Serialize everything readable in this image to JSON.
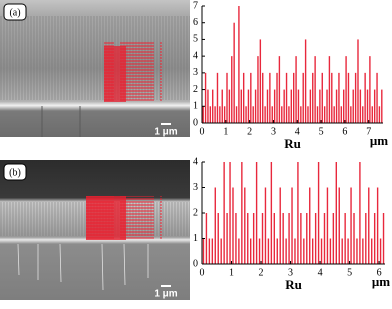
{
  "chart_data": [
    {
      "type": "spike",
      "panel_label": "(a)",
      "scale_bar_label": "1 μm",
      "x_label": "Ru",
      "x_unit": "μm",
      "color": "#e8283c",
      "xlim": [
        0,
        7.6
      ],
      "xticks": [
        0,
        1,
        2,
        3,
        4,
        5,
        6,
        7
      ],
      "ylim": [
        0,
        7
      ],
      "yticks": [
        0,
        1,
        2,
        3,
        4,
        5,
        6,
        7
      ],
      "x": [
        0.05,
        0.15,
        0.25,
        0.35,
        0.45,
        0.55,
        0.65,
        0.75,
        0.85,
        0.95,
        1.05,
        1.15,
        1.25,
        1.35,
        1.45,
        1.55,
        1.65,
        1.75,
        1.85,
        1.95,
        2.05,
        2.15,
        2.25,
        2.35,
        2.45,
        2.55,
        2.65,
        2.75,
        2.85,
        2.95,
        3.05,
        3.15,
        3.25,
        3.35,
        3.45,
        3.55,
        3.65,
        3.75,
        3.85,
        3.95,
        4.05,
        4.15,
        4.25,
        4.35,
        4.45,
        4.55,
        4.65,
        4.75,
        4.85,
        4.95,
        5.05,
        5.15,
        5.25,
        5.35,
        5.45,
        5.55,
        5.65,
        5.75,
        5.85,
        5.95,
        6.05,
        6.15,
        6.25,
        6.35,
        6.45,
        6.55,
        6.65,
        6.75,
        6.85,
        6.95,
        7.05,
        7.15,
        7.25,
        7.35,
        7.45,
        7.55
      ],
      "values": [
        1,
        3,
        2,
        1,
        2,
        1,
        3,
        1,
        2,
        1,
        3,
        2,
        4,
        6,
        1,
        7,
        2,
        3,
        1,
        2,
        3,
        1,
        2,
        4,
        5,
        3,
        1,
        2,
        3,
        1,
        2,
        3,
        4,
        1,
        2,
        3,
        1,
        2,
        3,
        4,
        2,
        1,
        3,
        5,
        1,
        2,
        3,
        4,
        1,
        2,
        3,
        1,
        2,
        4,
        3,
        1,
        2,
        3,
        1,
        2,
        4,
        3,
        1,
        2,
        3,
        5,
        2,
        1,
        3,
        2,
        4,
        1,
        2,
        3,
        1,
        2
      ]
    },
    {
      "type": "spike",
      "panel_label": "(b)",
      "scale_bar_label": "1 μm",
      "x_label": "Ru",
      "x_unit": "μm",
      "color": "#e8283c",
      "xlim": [
        0,
        6.2
      ],
      "xticks": [
        0,
        1,
        2,
        3,
        4,
        5,
        6
      ],
      "ylim": [
        0,
        4
      ],
      "yticks": [
        0,
        1,
        2,
        3,
        4
      ],
      "x": [
        0.05,
        0.15,
        0.25,
        0.35,
        0.45,
        0.55,
        0.65,
        0.75,
        0.85,
        0.95,
        1.05,
        1.15,
        1.25,
        1.35,
        1.45,
        1.55,
        1.65,
        1.75,
        1.85,
        1.95,
        2.05,
        2.15,
        2.25,
        2.35,
        2.45,
        2.55,
        2.65,
        2.75,
        2.85,
        2.95,
        3.05,
        3.15,
        3.25,
        3.35,
        3.45,
        3.55,
        3.65,
        3.75,
        3.85,
        3.95,
        4.05,
        4.15,
        4.25,
        4.35,
        4.45,
        4.55,
        4.65,
        4.75,
        4.85,
        4.95,
        5.05,
        5.15,
        5.25,
        5.35,
        5.45,
        5.55,
        5.65,
        5.75,
        5.85,
        5.95,
        6.05,
        6.15
      ],
      "values": [
        1,
        2,
        1,
        1,
        3,
        2,
        1,
        4,
        2,
        4,
        3,
        2,
        1,
        4,
        3,
        2,
        1,
        2,
        4,
        1,
        2,
        3,
        1,
        4,
        2,
        1,
        3,
        2,
        1,
        2,
        3,
        1,
        4,
        2,
        1,
        2,
        3,
        1,
        2,
        4,
        1,
        2,
        3,
        1,
        2,
        4,
        3,
        1,
        2,
        1,
        3,
        2,
        1,
        4,
        1,
        2,
        3,
        1,
        2,
        3,
        1,
        2
      ]
    }
  ]
}
